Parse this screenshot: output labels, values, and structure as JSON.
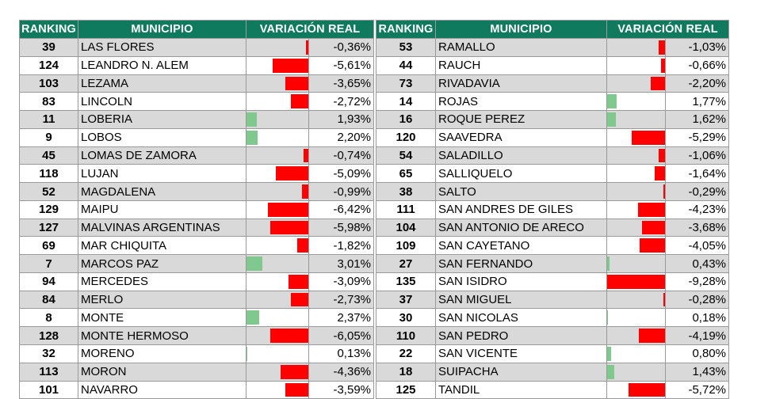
{
  "chart_data": {
    "type": "table",
    "columns": [
      "RANKING",
      "MUNICIPIO",
      "VARIACIÓN REAL"
    ],
    "tables": [
      {
        "rows": [
          {
            "ranking": "39",
            "municipio": "LAS FLORES",
            "value": -0.36,
            "label": "-0,36%"
          },
          {
            "ranking": "124",
            "municipio": "LEANDRO N. ALEM",
            "value": -5.61,
            "label": "-5,61%"
          },
          {
            "ranking": "103",
            "municipio": "LEZAMA",
            "value": -3.65,
            "label": "-3,65%"
          },
          {
            "ranking": "83",
            "municipio": "LINCOLN",
            "value": -2.72,
            "label": "-2,72%"
          },
          {
            "ranking": "11",
            "municipio": "LOBERIA",
            "value": 1.93,
            "label": "1,93%"
          },
          {
            "ranking": "9",
            "municipio": "LOBOS",
            "value": 2.2,
            "label": "2,20%"
          },
          {
            "ranking": "45",
            "municipio": "LOMAS DE ZAMORA",
            "value": -0.74,
            "label": "-0,74%"
          },
          {
            "ranking": "118",
            "municipio": "LUJAN",
            "value": -5.09,
            "label": "-5,09%"
          },
          {
            "ranking": "52",
            "municipio": "MAGDALENA",
            "value": -0.99,
            "label": "-0,99%"
          },
          {
            "ranking": "129",
            "municipio": "MAIPU",
            "value": -6.42,
            "label": "-6,42%"
          },
          {
            "ranking": "127",
            "municipio": "MALVINAS ARGENTINAS",
            "value": -5.98,
            "label": "-5,98%"
          },
          {
            "ranking": "69",
            "municipio": "MAR CHIQUITA",
            "value": -1.82,
            "label": "-1,82%"
          },
          {
            "ranking": "7",
            "municipio": "MARCOS PAZ",
            "value": 3.01,
            "label": "3,01%"
          },
          {
            "ranking": "94",
            "municipio": "MERCEDES",
            "value": -3.09,
            "label": "-3,09%"
          },
          {
            "ranking": "84",
            "municipio": "MERLO",
            "value": -2.73,
            "label": "-2,73%"
          },
          {
            "ranking": "8",
            "municipio": "MONTE",
            "value": 2.37,
            "label": "2,37%"
          },
          {
            "ranking": "128",
            "municipio": "MONTE HERMOSO",
            "value": -6.05,
            "label": "-6,05%"
          },
          {
            "ranking": "32",
            "municipio": "MORENO",
            "value": 0.13,
            "label": "0,13%"
          },
          {
            "ranking": "113",
            "municipio": "MORON",
            "value": -4.36,
            "label": "-4,36%"
          },
          {
            "ranking": "101",
            "municipio": "NAVARRO",
            "value": -3.59,
            "label": "-3,59%"
          }
        ]
      },
      {
        "rows": [
          {
            "ranking": "53",
            "municipio": "RAMALLO",
            "value": -1.03,
            "label": "-1,03%"
          },
          {
            "ranking": "44",
            "municipio": "RAUCH",
            "value": -0.66,
            "label": "-0,66%"
          },
          {
            "ranking": "73",
            "municipio": "RIVADAVIA",
            "value": -2.2,
            "label": "-2,20%"
          },
          {
            "ranking": "14",
            "municipio": "ROJAS",
            "value": 1.77,
            "label": "1,77%"
          },
          {
            "ranking": "16",
            "municipio": "ROQUE PEREZ",
            "value": 1.62,
            "label": "1,62%"
          },
          {
            "ranking": "120",
            "municipio": "SAAVEDRA",
            "value": -5.29,
            "label": "-5,29%"
          },
          {
            "ranking": "54",
            "municipio": "SALADILLO",
            "value": -1.06,
            "label": "-1,06%"
          },
          {
            "ranking": "65",
            "municipio": "SALLIQUELO",
            "value": -1.64,
            "label": "-1,64%"
          },
          {
            "ranking": "38",
            "municipio": "SALTO",
            "value": -0.29,
            "label": "-0,29%"
          },
          {
            "ranking": "111",
            "municipio": "SAN ANDRES DE GILES",
            "value": -4.23,
            "label": "-4,23%"
          },
          {
            "ranking": "104",
            "municipio": "SAN ANTONIO DE ARECO",
            "value": -3.68,
            "label": "-3,68%"
          },
          {
            "ranking": "109",
            "municipio": "SAN CAYETANO",
            "value": -4.05,
            "label": "-4,05%"
          },
          {
            "ranking": "27",
            "municipio": "SAN FERNANDO",
            "value": 0.43,
            "label": "0,43%"
          },
          {
            "ranking": "135",
            "municipio": "SAN ISIDRO",
            "value": -9.28,
            "label": "-9,28%"
          },
          {
            "ranking": "37",
            "municipio": "SAN MIGUEL",
            "value": -0.28,
            "label": "-0,28%"
          },
          {
            "ranking": "30",
            "municipio": "SAN NICOLAS",
            "value": 0.18,
            "label": "0,18%"
          },
          {
            "ranking": "110",
            "municipio": "SAN PEDRO",
            "value": -4.19,
            "label": "-4,19%"
          },
          {
            "ranking": "22",
            "municipio": "SAN VICENTE",
            "value": 0.8,
            "label": "0,80%"
          },
          {
            "ranking": "18",
            "municipio": "SUIPACHA",
            "value": 1.43,
            "label": "1,43%"
          },
          {
            "ranking": "125",
            "municipio": "TANDIL",
            "value": -5.72,
            "label": "-5,72%"
          }
        ]
      }
    ],
    "colors": {
      "header_bg": "#0f7a5e",
      "header_text": "#ffffff",
      "negative_bar": "#ff0000",
      "positive_bar": "#7fc98e",
      "shaded_row": "#d9d9d9"
    }
  }
}
